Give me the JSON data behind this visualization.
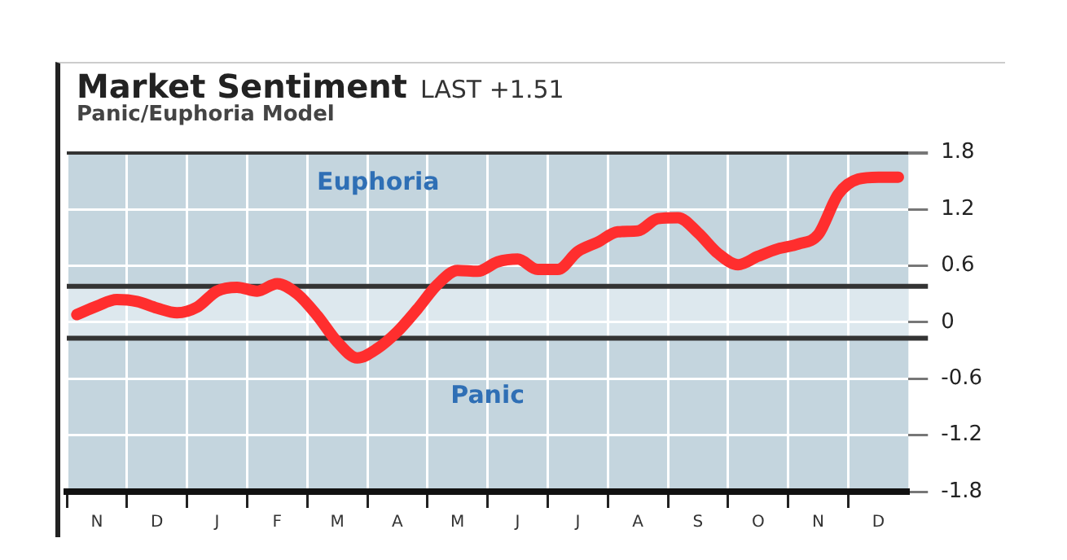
{
  "chart_data": {
    "type": "line",
    "title": "Market Sentiment",
    "subtitle": "Panic/Euphoria Model",
    "annotations": [
      "LAST +1.51",
      "Euphoria",
      "Panic"
    ],
    "categories": [
      null,
      "N",
      null,
      null,
      "D",
      null,
      null,
      "J",
      null,
      null,
      "F",
      null,
      null,
      "M",
      null,
      null,
      "A",
      null,
      null,
      "M",
      null,
      null,
      "J",
      null,
      null,
      "J",
      null,
      null,
      "A",
      null,
      null,
      "S",
      null,
      null,
      "O",
      null,
      null,
      "N",
      null,
      null,
      "D",
      null
    ],
    "series": [
      {
        "color": "#ff2e2e",
        "values": [
          0.08,
          0.17,
          0.24,
          0.22,
          0.15,
          0.1,
          0.16,
          0.33,
          0.37,
          0.33,
          0.41,
          0.3,
          0.07,
          -0.21,
          -0.38,
          -0.28,
          -0.1,
          0.14,
          0.4,
          0.55,
          0.54,
          0.64,
          0.67,
          0.56,
          0.56,
          0.75,
          0.85,
          0.96,
          0.97,
          1.1,
          1.11,
          0.95,
          0.73,
          0.61,
          0.7,
          0.78,
          0.83,
          0.93,
          1.36,
          1.52,
          1.54,
          1.54
        ]
      }
    ],
    "ylim": [
      -1.8,
      1.8
    ],
    "yticks": [
      -1.8,
      -1.2,
      -0.6,
      0,
      0.6,
      1.2,
      1.8
    ],
    "ref_lines": [
      {
        "axis": "y",
        "value": 0.38,
        "color": "#333333"
      },
      {
        "axis": "y",
        "value": -0.17,
        "color": "#333333"
      }
    ],
    "bands": [
      {
        "axis": "y",
        "from": -0.17,
        "to": 0.38,
        "color": "#dde8ee"
      }
    ],
    "grid": true,
    "legend": false,
    "marker": "none",
    "line_style": "solid"
  }
}
